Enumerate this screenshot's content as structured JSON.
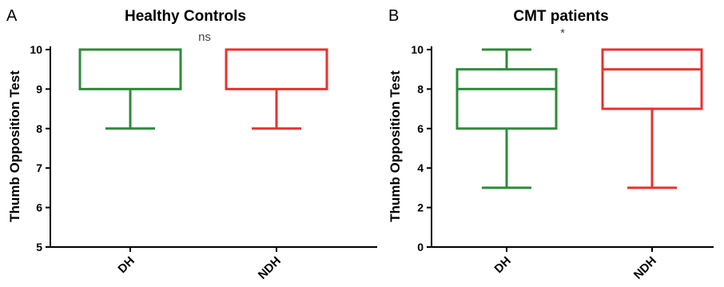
{
  "chart_data": [
    {
      "panel": "A",
      "type": "box",
      "title": "Healthy Controls",
      "annotation": "ns",
      "ylabel": "Thumb Opposition Test",
      "ylim": [
        5,
        10
      ],
      "yticks": [
        "5",
        "6",
        "7",
        "8",
        "9",
        "10"
      ],
      "categories": [
        "DH",
        "NDH"
      ],
      "boxes": [
        {
          "category": "DH",
          "min": 8,
          "q1": 9,
          "median": 10,
          "q3": 10,
          "max": 10,
          "color": "#2e8b3a"
        },
        {
          "category": "NDH",
          "min": 8,
          "q1": 9,
          "median": 10,
          "q3": 10,
          "max": 10,
          "color": "#e8322f"
        }
      ]
    },
    {
      "panel": "B",
      "type": "box",
      "title": "CMT patients",
      "annotation": "*",
      "ylabel": "Thumb Opposition Test",
      "ylim": [
        0,
        10
      ],
      "yticks": [
        "0",
        "2",
        "4",
        "6",
        "8",
        "10"
      ],
      "categories": [
        "DH",
        "NDH"
      ],
      "boxes": [
        {
          "category": "DH",
          "min": 3,
          "q1": 6,
          "median": 8,
          "q3": 9,
          "max": 10,
          "color": "#2e8b3a"
        },
        {
          "category": "NDH",
          "min": 3,
          "q1": 7,
          "median": 9,
          "q3": 10,
          "max": 10,
          "color": "#e8322f"
        }
      ]
    }
  ]
}
